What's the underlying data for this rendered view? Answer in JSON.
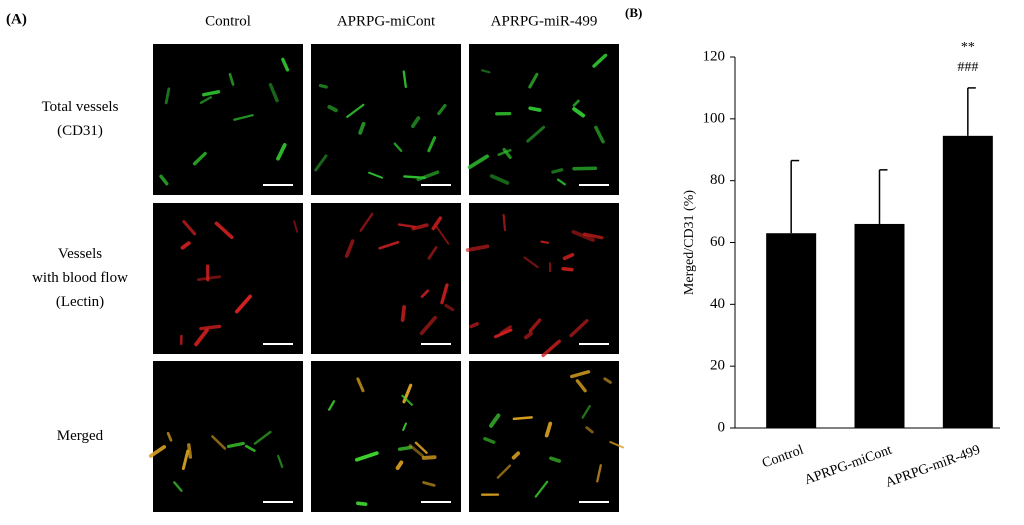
{
  "panel_a": {
    "label": "(A)",
    "columns": [
      "Control",
      "APRPG-miCont",
      "APRPG-miR-499"
    ],
    "rows": [
      [
        "Total vessels",
        "(CD31)"
      ],
      [
        "Vessels",
        "with blood flow",
        "(Lectin)"
      ],
      [
        "Merged"
      ]
    ]
  },
  "chart_data": {
    "type": "bar",
    "label": "(B)",
    "y_label": "Merged/CD31 (%)",
    "categories": [
      "Control",
      "APRPG-miCont",
      "APRPG-miR-499"
    ],
    "values": [
      63,
      66,
      94.5
    ],
    "errors": [
      23.5,
      17.5,
      15.5
    ],
    "color": "#000000",
    "annotations": [
      "**",
      "###"
    ],
    "ylim": [
      0,
      120
    ],
    "yticks": [
      0,
      20,
      40,
      60,
      80,
      100,
      120
    ],
    "grid": false
  }
}
